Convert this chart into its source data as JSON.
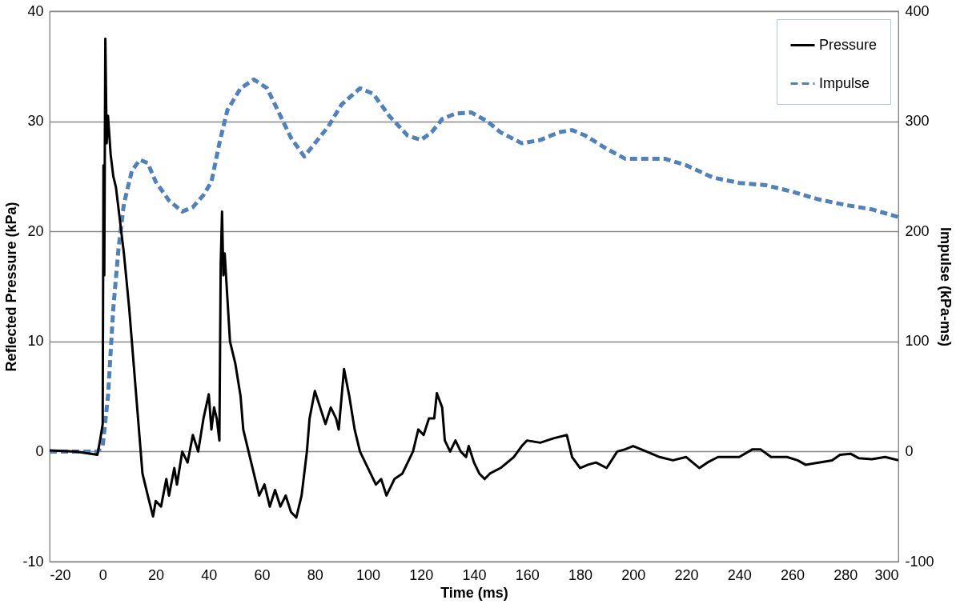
{
  "chart_data": {
    "type": "line",
    "xlabel": "Time (ms)",
    "ylabel": "Reflected Pressure (kPa)",
    "y2label": "Impulse (kPa-ms)",
    "xlim": [
      -20,
      300
    ],
    "xticks": [
      -20,
      0,
      20,
      40,
      60,
      80,
      100,
      120,
      140,
      160,
      180,
      200,
      220,
      240,
      260,
      280,
      300
    ],
    "ylim": [
      -10,
      40
    ],
    "yticks": [
      -10,
      0,
      10,
      20,
      30,
      40
    ],
    "y2lim": [
      -100,
      400
    ],
    "y2ticks": [
      -100,
      0,
      100,
      200,
      300,
      400
    ],
    "grid": "y",
    "legend": "top right",
    "marker": "none",
    "series": [
      {
        "name": "Pressure",
        "color": "#000000",
        "line_style": "solid",
        "x": [
          -20,
          -10,
          -2,
          -1,
          0,
          0.3,
          0.6,
          1,
          1.5,
          2,
          3,
          4,
          5,
          6,
          8,
          10,
          11,
          13,
          15,
          17,
          19,
          20,
          22,
          24,
          25,
          27,
          28,
          30,
          32,
          34,
          36,
          38,
          40,
          41,
          42,
          43,
          44,
          44.5,
          45,
          45.5,
          46,
          47,
          48,
          50,
          52,
          53,
          55,
          57,
          59,
          61,
          63,
          65,
          67,
          69,
          71,
          73,
          75,
          76,
          77,
          78,
          80,
          82,
          84,
          86,
          88,
          89,
          91,
          93,
          95,
          97,
          99,
          101,
          103,
          105,
          107,
          110,
          113,
          115,
          117,
          119,
          121,
          123,
          125,
          126,
          128,
          129,
          131,
          133,
          135,
          137,
          138,
          140,
          142,
          144,
          146,
          150,
          155,
          158,
          160,
          165,
          170,
          175,
          177,
          180,
          183,
          186,
          190,
          194,
          197,
          200,
          205,
          210,
          215,
          220,
          225,
          228,
          232,
          236,
          240,
          245,
          248,
          252,
          258,
          262,
          265,
          270,
          275,
          278,
          282,
          285,
          290,
          295,
          300
        ],
        "values": [
          0.1,
          0,
          -0.3,
          1,
          2.5,
          26,
          16,
          37.5,
          28,
          30.5,
          27,
          25,
          24,
          22,
          18,
          13,
          10,
          4,
          -2,
          -4,
          -5.9,
          -4.5,
          -5,
          -2.5,
          -4,
          -1.5,
          -3,
          0,
          -1,
          1.5,
          0,
          3,
          5.2,
          2,
          4,
          3,
          1,
          17,
          21.8,
          16,
          18,
          14,
          10,
          8,
          5,
          2,
          0,
          -2,
          -4,
          -3,
          -5,
          -3.5,
          -5,
          -4,
          -5.5,
          -6,
          -4,
          -2,
          0,
          3,
          5.5,
          4,
          2.5,
          4,
          3,
          2,
          7.5,
          5,
          2,
          0,
          -1,
          -2,
          -3,
          -2.5,
          -4,
          -2.5,
          -2,
          -1,
          0,
          2,
          1.5,
          3,
          3,
          5.3,
          4,
          1,
          0,
          1,
          0,
          -0.5,
          0.5,
          -1,
          -2,
          -2.5,
          -2,
          -1.5,
          -0.5,
          0.5,
          1,
          0.8,
          1.2,
          1.5,
          -0.5,
          -1.5,
          -1.2,
          -1,
          -1.5,
          0,
          0.2,
          0.5,
          0,
          -0.5,
          -0.8,
          -0.5,
          -1.5,
          -1,
          -0.5,
          -0.5,
          -0.5,
          0.2,
          0.2,
          -0.5,
          -0.5,
          -0.8,
          -1.2,
          -1,
          -0.8,
          -0.3,
          -0.2,
          -0.6,
          -0.7,
          -0.5,
          -0.8
        ]
      },
      {
        "name": "Impulse",
        "color": "#4f81bd",
        "line_style": "dashed",
        "axis": "y2",
        "x": [
          -20,
          -10,
          -2,
          0,
          2,
          4,
          6,
          8,
          11,
          14,
          17,
          20,
          25,
          30,
          34,
          38,
          41,
          44,
          47,
          52,
          57,
          62,
          66,
          71,
          76,
          80,
          85,
          90,
          97,
          102,
          108,
          115,
          120,
          124,
          128,
          133,
          139,
          145,
          150,
          158,
          165,
          172,
          177,
          182,
          190,
          197,
          205,
          212,
          220,
          230,
          240,
          250,
          260,
          270,
          280,
          290,
          300
        ],
        "values": [
          0,
          0,
          0,
          5,
          50,
          130,
          185,
          225,
          255,
          265,
          262,
          245,
          228,
          218,
          222,
          233,
          245,
          280,
          310,
          330,
          338,
          330,
          310,
          285,
          268,
          280,
          295,
          315,
          330,
          325,
          305,
          287,
          283,
          290,
          302,
          307,
          308,
          300,
          290,
          280,
          283,
          290,
          292,
          287,
          275,
          266,
          266,
          266,
          260,
          249,
          244,
          242,
          236,
          229,
          224,
          220,
          213
        ]
      }
    ]
  }
}
